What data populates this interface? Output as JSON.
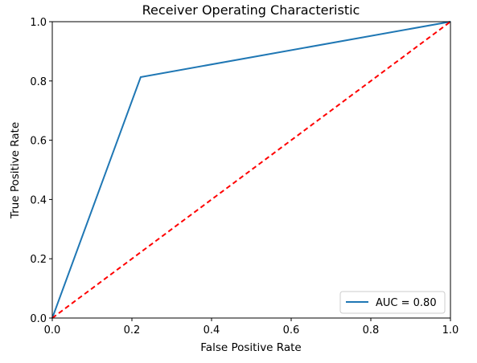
{
  "chart_data": {
    "type": "line",
    "title": "Receiver Operating Characteristic",
    "xlabel": "False Positive Rate",
    "ylabel": "True Positive Rate",
    "xlim": [
      0.0,
      1.0
    ],
    "ylim": [
      0.0,
      1.0
    ],
    "xticks": [
      "0.0",
      "0.2",
      "0.4",
      "0.6",
      "0.8",
      "1.0"
    ],
    "yticks": [
      "0.0",
      "0.2",
      "0.4",
      "0.6",
      "0.8",
      "1.0"
    ],
    "grid": false,
    "legend_position": "lower-right",
    "series": [
      {
        "name": "AUC = 0.80",
        "color": "#1f77b4",
        "style": "solid",
        "x": [
          0.0,
          0.222,
          1.0
        ],
        "y": [
          0.0,
          0.813,
          1.0
        ]
      },
      {
        "color": "#ff0000",
        "style": "dashed",
        "x": [
          0.0,
          1.0
        ],
        "y": [
          0.0,
          1.0
        ]
      }
    ]
  }
}
